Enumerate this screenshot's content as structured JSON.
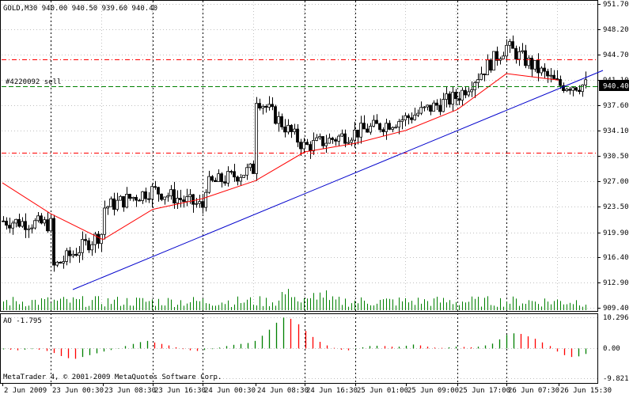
{
  "chart_header": "GOLD,M30  940.00 940.50 939.60 940.40",
  "order_label": "#4220092 sell",
  "current_price": "940.40",
  "ao_header": "AO -1.795",
  "copyright": "MetaTrader 4, © 2001-2009 MetaQuotes Software Corp.",
  "colors": {
    "background": "#ffffff",
    "candle": "#000000",
    "grid": "#c0c0c0",
    "separator": "#000000",
    "moving_average": "#ff0000",
    "trendline": "#0000cc",
    "order_line": "#008000",
    "level_line": "#ff0000",
    "volume": "#008000",
    "ao_up": "#008000",
    "ao_down": "#ff0000",
    "price_label_bg": "#000000",
    "price_label_fg": "#ffffff"
  },
  "chart_data": [
    {
      "type": "candlestick",
      "title": "GOLD,M30  940.00 940.50 939.60 940.40",
      "y_ticks": [
        "951.70",
        "948.20",
        "944.70",
        "941.10",
        "937.60",
        "934.10",
        "930.50",
        "927.00",
        "923.50",
        "919.90",
        "916.40",
        "912.90",
        "909.40"
      ],
      "ylim": [
        909.4,
        951.7
      ],
      "x_ticks": [
        "2 Jun 2009",
        "23 Jun 00:30",
        "23 Jun 08:30",
        "23 Jun 16:30",
        "24 Jun 00:30",
        "24 Jun 08:30",
        "24 Jun 16:30",
        "25 Jun 01:00",
        "25 Jun 09:00",
        "25 Jun 17:00",
        "26 Jun 07:30",
        "26 Jun 15:30"
      ],
      "day_separators": [
        "23 Jun 00:30",
        "23 Jun 16:30",
        "24 Jun 00:30",
        "24 Jun 16:30",
        "25 Jun 01:00",
        "25 Jun 17:00",
        "26 Jun 07:30"
      ],
      "close_path": [
        {
          "x": "2 Jun 2009",
          "y": 921.5
        },
        {
          "x": "23 Jun 00:30",
          "y": 921.0
        },
        {
          "x": "23 Jun 00:30",
          "y": 914.8
        },
        {
          "x": "23 Jun 08:30",
          "y": 919.9
        },
        {
          "x": "23 Jun 08:30",
          "y": 923.3
        },
        {
          "x": "23 Jun 16:30",
          "y": 925.8
        },
        {
          "x": "24 Jun 00:30",
          "y": 923.5
        },
        {
          "x": "24 Jun 00:30",
          "y": 926.3
        },
        {
          "x": "24 Jun 08:30",
          "y": 928.8
        },
        {
          "x": "24 Jun 08:30",
          "y": 938.8
        },
        {
          "x": "24 Jun 16:30",
          "y": 931.8
        },
        {
          "x": "25 Jun 01:00",
          "y": 933.8
        },
        {
          "x": "25 Jun 09:00",
          "y": 935.8
        },
        {
          "x": "25 Jun 17:00",
          "y": 938.8
        },
        {
          "x": "26 Jun 07:30",
          "y": 945.8
        },
        {
          "x": "26 Jun 15:30",
          "y": 940.4
        }
      ],
      "ma_path": [
        {
          "x": "2 Jun 2009",
          "y": 926.8
        },
        {
          "x": "23 Jun 00:30",
          "y": 922.5
        },
        {
          "x": "23 Jun 08:30",
          "y": 918.9
        },
        {
          "x": "23 Jun 16:30",
          "y": 923.1
        },
        {
          "x": "24 Jun 00:30",
          "y": 924.6
        },
        {
          "x": "24 Jun 08:30",
          "y": 927.1
        },
        {
          "x": "24 Jun 16:30",
          "y": 931.1
        },
        {
          "x": "25 Jun 01:00",
          "y": 932.3
        },
        {
          "x": "25 Jun 09:00",
          "y": 934.1
        },
        {
          "x": "25 Jun 17:00",
          "y": 937.0
        },
        {
          "x": "26 Jun 07:30",
          "y": 942.0
        },
        {
          "x": "26 Jun 15:30",
          "y": 941.1
        }
      ],
      "trendline": [
        {
          "x": "23 Jun 00:30",
          "y": 912.5
        },
        {
          "x": "26 Jun 15:30",
          "y": 942.2
        }
      ],
      "horizontal_levels": [
        {
          "label": "#4220092 sell",
          "y": 940.4,
          "style": "dashed-green"
        },
        {
          "y": 944.2,
          "style": "dashdot-red"
        },
        {
          "y": 930.9,
          "style": "dashdot-red"
        }
      ],
      "volume_histogram": true,
      "grid": true
    },
    {
      "type": "histogram",
      "title": "AO -1.795",
      "y_ticks": [
        "10.296",
        "0.00",
        "-9.821"
      ],
      "ylim": [
        -9.821,
        10.296
      ],
      "series": [
        {
          "values": [
            -0.3,
            -0.4,
            -0.6,
            -0.4,
            -0.2,
            -0.4,
            -0.8,
            -1.5,
            -2.5,
            -3.2,
            -3.4,
            -2.8,
            -2.2,
            -1.6,
            -1.0,
            -0.5,
            0.1,
            0.8,
            1.5,
            2.1,
            2.5,
            2.0,
            1.5,
            1.0,
            0.4,
            -0.2,
            -0.6,
            -0.8,
            -0.5,
            -0.2,
            0.3,
            0.8,
            1.2,
            1.5,
            1.8,
            2.5,
            4.2,
            6.2,
            8.5,
            10.2,
            9.8,
            8.0,
            5.8,
            3.8,
            2.2,
            1.0,
            0.2,
            -0.4,
            -0.6,
            -0.2,
            0.4,
            0.8,
            0.9,
            0.8,
            0.6,
            0.6,
            0.9,
            1.3,
            1.0,
            0.6,
            0.3,
            0.2,
            0.4,
            0.6,
            0.5,
            0.4,
            0.6,
            1.0,
            1.6,
            3.0,
            4.5,
            5.0,
            4.8,
            4.0,
            3.2,
            2.0,
            0.8,
            -1.0,
            -2.2,
            -2.8,
            -2.6,
            -1.8
          ]
        }
      ]
    }
  ]
}
